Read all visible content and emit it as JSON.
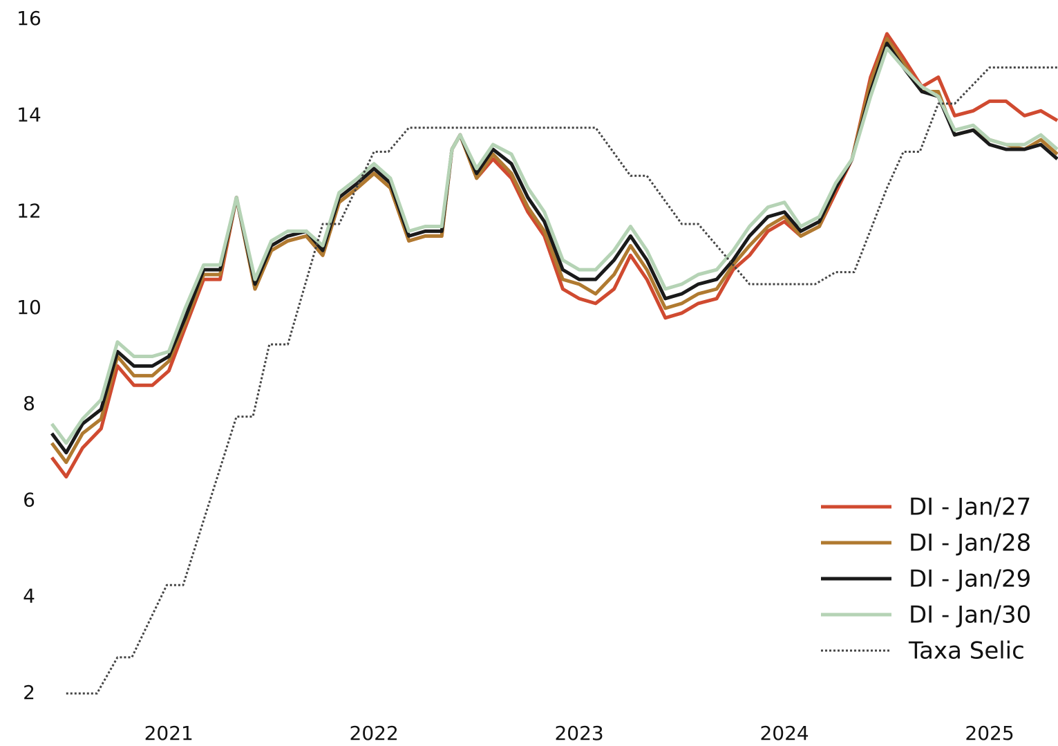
{
  "chart_data": {
    "type": "line",
    "x": [
      2020.43,
      2020.5,
      2020.58,
      2020.67,
      2020.75,
      2020.83,
      2020.92,
      2021.0,
      2021.08,
      2021.17,
      2021.25,
      2021.33,
      2021.42,
      2021.5,
      2021.58,
      2021.67,
      2021.75,
      2021.83,
      2021.92,
      2022.0,
      2022.08,
      2022.17,
      2022.25,
      2022.33,
      2022.38,
      2022.42,
      2022.5,
      2022.58,
      2022.67,
      2022.75,
      2022.83,
      2022.92,
      2023.0,
      2023.08,
      2023.17,
      2023.25,
      2023.33,
      2023.42,
      2023.5,
      2023.58,
      2023.67,
      2023.75,
      2023.83,
      2023.92,
      2024.0,
      2024.08,
      2024.17,
      2024.25,
      2024.33,
      2024.42,
      2024.5,
      2024.58,
      2024.67,
      2024.75,
      2024.83,
      2024.92,
      2025.0,
      2025.08,
      2025.17,
      2025.25,
      2025.33
    ],
    "series": [
      {
        "name": "DI - Jan/27",
        "color": "#d04a30",
        "values": [
          6.9,
          6.5,
          7.1,
          7.5,
          8.8,
          8.4,
          8.4,
          8.7,
          9.6,
          10.6,
          10.6,
          12.3,
          10.4,
          11.2,
          11.4,
          11.5,
          11.1,
          12.2,
          12.5,
          12.8,
          12.5,
          11.4,
          11.5,
          11.5,
          13.3,
          13.6,
          12.7,
          13.1,
          12.7,
          12.0,
          11.5,
          10.4,
          10.2,
          10.1,
          10.4,
          11.1,
          10.6,
          9.8,
          9.9,
          10.1,
          10.2,
          10.8,
          11.1,
          11.6,
          11.8,
          11.5,
          11.7,
          12.4,
          13.1,
          14.8,
          15.7,
          15.2,
          14.6,
          14.8,
          14.0,
          14.1,
          14.3,
          14.3,
          14.0,
          14.1,
          13.9
        ]
      },
      {
        "name": "DI - Jan/28",
        "color": "#b07a30",
        "values": [
          7.2,
          6.8,
          7.4,
          7.7,
          9.0,
          8.6,
          8.6,
          8.9,
          9.7,
          10.7,
          10.7,
          12.3,
          10.4,
          11.2,
          11.4,
          11.5,
          11.1,
          12.2,
          12.5,
          12.8,
          12.5,
          11.4,
          11.5,
          11.5,
          13.3,
          13.6,
          12.7,
          13.2,
          12.8,
          12.1,
          11.6,
          10.6,
          10.5,
          10.3,
          10.7,
          11.3,
          10.8,
          10.0,
          10.1,
          10.3,
          10.4,
          10.9,
          11.3,
          11.7,
          11.9,
          11.5,
          11.7,
          12.5,
          13.1,
          14.7,
          15.6,
          15.1,
          14.5,
          14.5,
          13.6,
          13.7,
          13.5,
          13.4,
          13.3,
          13.5,
          13.2
        ]
      },
      {
        "name": "DI - Jan/29",
        "color": "#1a1a1a",
        "values": [
          7.4,
          7.0,
          7.6,
          7.9,
          9.1,
          8.8,
          8.8,
          9.0,
          9.8,
          10.8,
          10.8,
          12.3,
          10.5,
          11.3,
          11.5,
          11.6,
          11.2,
          12.3,
          12.6,
          12.9,
          12.6,
          11.5,
          11.6,
          11.6,
          13.3,
          13.6,
          12.8,
          13.3,
          13.0,
          12.3,
          11.8,
          10.8,
          10.6,
          10.6,
          11.0,
          11.5,
          11.0,
          10.2,
          10.3,
          10.5,
          10.6,
          11.0,
          11.5,
          11.9,
          12.0,
          11.6,
          11.8,
          12.5,
          13.1,
          14.5,
          15.5,
          15.0,
          14.5,
          14.4,
          13.6,
          13.7,
          13.4,
          13.3,
          13.3,
          13.4,
          13.1
        ]
      },
      {
        "name": "DI - Jan/30",
        "color": "#b5d3b5",
        "values": [
          7.6,
          7.2,
          7.7,
          8.1,
          9.3,
          9.0,
          9.0,
          9.1,
          10.0,
          10.9,
          10.9,
          12.3,
          10.6,
          11.4,
          11.6,
          11.6,
          11.3,
          12.4,
          12.7,
          13.0,
          12.7,
          11.6,
          11.7,
          11.7,
          13.3,
          13.6,
          12.9,
          13.4,
          13.2,
          12.5,
          12.0,
          11.0,
          10.8,
          10.8,
          11.2,
          11.7,
          11.2,
          10.4,
          10.5,
          10.7,
          10.8,
          11.2,
          11.7,
          12.1,
          12.2,
          11.7,
          11.9,
          12.6,
          13.1,
          14.4,
          15.4,
          15.0,
          14.6,
          14.4,
          13.7,
          13.8,
          13.5,
          13.4,
          13.4,
          13.6,
          13.3
        ]
      },
      {
        "name": "Taxa Selic",
        "color": "#444444",
        "linestyle": "dotted",
        "x": [
          2020.5,
          2020.65,
          2020.75,
          2020.82,
          2020.99,
          2021.07,
          2021.33,
          2021.41,
          2021.49,
          2021.58,
          2021.75,
          2021.83,
          2022.0,
          2022.07,
          2022.17,
          2023.08,
          2023.25,
          2023.33,
          2023.5,
          2023.58,
          2023.83,
          2024.15,
          2024.25,
          2024.34,
          2024.5,
          2024.58,
          2024.66,
          2024.75,
          2024.83,
          2025.0,
          2025.33
        ],
        "values": [
          2.0,
          2.0,
          2.75,
          2.75,
          4.25,
          4.25,
          7.75,
          7.75,
          9.25,
          9.25,
          11.75,
          11.75,
          13.25,
          13.25,
          13.75,
          13.75,
          12.75,
          12.75,
          11.75,
          11.75,
          10.5,
          10.5,
          10.75,
          10.75,
          12.5,
          13.25,
          13.25,
          14.25,
          14.25,
          15.0,
          15.0
        ]
      }
    ],
    "xlim": [
      2020.43,
      2025.33
    ],
    "xticks": [
      2021,
      2022,
      2023,
      2024,
      2025
    ],
    "ylim": [
      2,
      16
    ],
    "yticks": [
      2,
      4,
      6,
      8,
      10,
      12,
      14,
      16
    ],
    "grid": false,
    "legend": "lower right"
  }
}
